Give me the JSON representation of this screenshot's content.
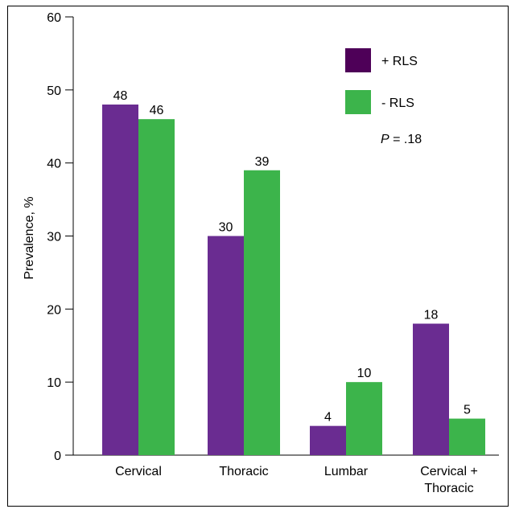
{
  "chart_data": {
    "type": "bar",
    "ylabel": "Prevalence, %",
    "ylim": [
      0,
      60
    ],
    "yticks": [
      "0",
      "10",
      "20",
      "30",
      "40",
      "50",
      "60"
    ],
    "categories": [
      [
        "Cervical"
      ],
      [
        "Thoracic"
      ],
      [
        "Lumbar"
      ],
      [
        "Cervical +",
        "Thoracic"
      ]
    ],
    "series": [
      {
        "name": "+ RLS",
        "color": "#6a2c91",
        "legend_color": "#4e0058",
        "values": [
          48,
          30,
          4,
          18
        ]
      },
      {
        "name": "- RLS",
        "color": "#3cb44b",
        "legend_color": "#3cb44b",
        "values": [
          46,
          39,
          10,
          5
        ]
      }
    ],
    "annotation": {
      "italic": "P",
      "text": " = .18"
    },
    "legend_position": "top-right",
    "grid": false
  }
}
